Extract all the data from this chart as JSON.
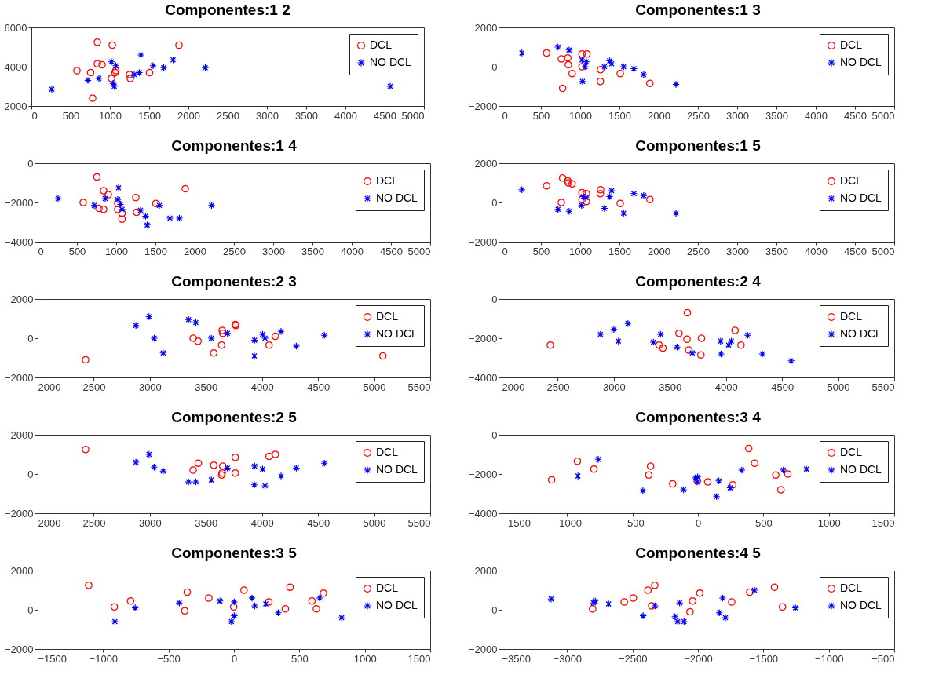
{
  "chart_data": [
    {
      "type": "scatter",
      "title": "Componentes:1  2",
      "xlim": [
        0,
        5000
      ],
      "xticks": [
        0,
        500,
        1000,
        1500,
        2000,
        2500,
        3000,
        3500,
        4000,
        4500,
        5000
      ],
      "ylim": [
        2000,
        6000
      ],
      "yticks": [
        2000,
        4000,
        6000
      ],
      "legend": "top right",
      "grid": false,
      "series": [
        {
          "name": "DCL",
          "color": "#ff0000",
          "marker": "circle",
          "x": [
            840,
            1030,
            1880,
            580,
            755,
            840,
            900,
            1075,
            1066,
            1020,
            1250,
            1260,
            1505,
            780
          ],
          "values": [
            5250,
            5100,
            5100,
            3800,
            3700,
            4150,
            4100,
            3800,
            3700,
            3400,
            3600,
            3400,
            3700,
            2400
          ]
        },
        {
          "name": "NO DCL",
          "color": "#0000ff",
          "marker": "cross",
          "x": [
            260,
            720,
            860,
            1020,
            1075,
            1040,
            1055,
            1310,
            1375,
            1395,
            1550,
            1685,
            1805,
            2215,
            4570
          ],
          "values": [
            2850,
            3300,
            3400,
            4250,
            4050,
            3150,
            3000,
            3600,
            3700,
            4600,
            4050,
            3950,
            4350,
            3950,
            3000
          ]
        }
      ]
    },
    {
      "type": "scatter",
      "title": "Componentes:1  3",
      "xlim": [
        0,
        5000
      ],
      "xticks": [
        0,
        500,
        1000,
        1500,
        2000,
        2500,
        3000,
        3500,
        4000,
        4500,
        5000
      ],
      "ylim": [
        -2000,
        2000
      ],
      "yticks": [
        -2000,
        0,
        2000
      ],
      "legend": "top right",
      "grid": false,
      "series": [
        {
          "name": "DCL",
          "color": "#ff0000",
          "marker": "circle",
          "x": [
            572,
            760,
            842,
            849,
            898,
            776,
            1023,
            1023,
            1086,
            1260,
            1257,
            1510,
            1888
          ],
          "values": [
            700,
            400,
            450,
            100,
            -350,
            -1100,
            650,
            0,
            650,
            -150,
            -750,
            -350,
            -850
          ]
        },
        {
          "name": "NO DCL",
          "color": "#0000ff",
          "marker": "cross",
          "x": [
            257,
            717,
            859,
            1023,
            1030,
            1062,
            1079,
            1309,
            1375,
            1401,
            1553,
            1684,
            1809,
            2221
          ],
          "values": [
            700,
            1000,
            850,
            350,
            -750,
            0,
            250,
            0,
            300,
            150,
            0,
            -100,
            -400,
            -900
          ]
        }
      ]
    },
    {
      "type": "scatter",
      "title": "Componentes:1  4",
      "xlim": [
        0,
        5000
      ],
      "xticks": [
        0,
        500,
        1000,
        1500,
        2000,
        2500,
        3000,
        3500,
        4000,
        4500,
        5000
      ],
      "ylim": [
        -4000,
        0
      ],
      "yticks": [
        -4000,
        -2000,
        0
      ],
      "legend": "top right",
      "grid": false,
      "series": [
        {
          "name": "DCL",
          "color": "#ff0000",
          "marker": "circle",
          "x": [
            755,
            840,
            900,
            580,
            780,
            840,
            1020,
            1020,
            1075,
            1075,
            1250,
            1260,
            1505,
            1880
          ],
          "values": [
            -700,
            -1400,
            -1600,
            -2000,
            -2300,
            -2350,
            -2350,
            -2050,
            -2550,
            -2850,
            -1750,
            -2500,
            -2050,
            -1300
          ]
        },
        {
          "name": "NO DCL",
          "color": "#0000ff",
          "marker": "cross",
          "x": [
            260,
            720,
            860,
            1030,
            1020,
            1055,
            1075,
            1310,
            1375,
            1395,
            1550,
            1685,
            1805,
            2215
          ],
          "values": [
            -1800,
            -2150,
            -1800,
            -1250,
            -1850,
            -2100,
            -2350,
            -2400,
            -2700,
            -3150,
            -2150,
            -2800,
            -2800,
            -2150
          ]
        }
      ]
    },
    {
      "type": "scatter",
      "title": "Componentes:1  5",
      "xlim": [
        0,
        5000
      ],
      "xticks": [
        0,
        500,
        1000,
        1500,
        2000,
        2500,
        3000,
        3500,
        4000,
        4500,
        5000
      ],
      "ylim": [
        -2000,
        2000
      ],
      "yticks": [
        -2000,
        0,
        2000
      ],
      "legend": "top right",
      "grid": false,
      "series": [
        {
          "name": "DCL",
          "color": "#ff0000",
          "marker": "circle",
          "x": [
            572,
            776,
            842,
            849,
            898,
            760,
            1023,
            1023,
            1079,
            1079,
            1260,
            1257,
            1510,
            1888
          ],
          "values": [
            850,
            1250,
            1100,
            1000,
            950,
            0,
            500,
            150,
            50,
            450,
            650,
            450,
            -50,
            150
          ]
        },
        {
          "name": "NO DCL",
          "color": "#0000ff",
          "marker": "cross",
          "x": [
            257,
            717,
            859,
            1017,
            1040,
            1073,
            1309,
            1375,
            1401,
            1553,
            1684,
            1809,
            2221
          ],
          "values": [
            650,
            -350,
            -450,
            -150,
            300,
            250,
            -300,
            300,
            600,
            -550,
            450,
            350,
            -550
          ]
        }
      ]
    },
    {
      "type": "scatter",
      "title": "Componentes:2  3",
      "xlim": [
        2000,
        5500
      ],
      "xticks": [
        2000,
        2500,
        3000,
        3500,
        4000,
        4500,
        5000,
        5500
      ],
      "ylim": [
        -2000,
        2000
      ],
      "yticks": [
        -2000,
        0,
        2000
      ],
      "legend": "top right",
      "grid": false,
      "series": [
        {
          "name": "DCL",
          "color": "#ff0000",
          "marker": "circle",
          "x": [
            2427,
            3386,
            3430,
            3570,
            3640,
            3645,
            3650,
            3762,
            3767,
            4063,
            4119,
            5078
          ],
          "values": [
            -1100,
            0,
            -150,
            -750,
            -350,
            400,
            250,
            700,
            650,
            -350,
            100,
            -900
          ]
        },
        {
          "name": "NO DCL",
          "color": "#0000ff",
          "marker": "cross",
          "x": [
            2876,
            2993,
            3039,
            3119,
            3345,
            3410,
            3548,
            3692,
            3934,
            3932,
            4005,
            4027,
            4170,
            4306,
            4556
          ],
          "values": [
            650,
            1100,
            0,
            -750,
            950,
            800,
            0,
            250,
            -100,
            -900,
            200,
            0,
            350,
            -400,
            150
          ]
        }
      ]
    },
    {
      "type": "scatter",
      "title": "Componentes:2  4",
      "xlim": [
        2000,
        5500
      ],
      "xticks": [
        2000,
        2500,
        3000,
        3500,
        4000,
        4500,
        5000,
        5500
      ],
      "ylim": [
        -4000,
        0
      ],
      "yticks": [
        -4000,
        -2000,
        0
      ],
      "legend": "top right",
      "grid": false,
      "series": [
        {
          "name": "DCL",
          "color": "#ff0000",
          "marker": "circle",
          "x": [
            2434,
            3656,
            3581,
            3652,
            3782,
            3404,
            3438,
            3668,
            3776,
            4081,
            4134
          ],
          "values": [
            -2350,
            -700,
            -1750,
            -2050,
            -2000,
            -2350,
            -2500,
            -2600,
            -2850,
            -1600,
            -2350
          ]
        },
        {
          "name": "NO DCL",
          "color": "#0000ff",
          "marker": "cross",
          "x": [
            2881,
            3000,
            3041,
            3126,
            3353,
            3417,
            3564,
            3700,
            3952,
            3956,
            4023,
            4048,
            4193,
            4324,
            4581
          ],
          "values": [
            -1800,
            -1550,
            -2150,
            -1250,
            -2200,
            -1800,
            -2450,
            -2750,
            -2150,
            -2800,
            -2350,
            -2150,
            -1850,
            -2800,
            -3150
          ]
        }
      ]
    },
    {
      "type": "scatter",
      "title": "Componentes:2  5",
      "xlim": [
        2000,
        5500
      ],
      "xticks": [
        2000,
        2500,
        3000,
        3500,
        4000,
        4500,
        5000,
        5500
      ],
      "ylim": [
        -2000,
        2000
      ],
      "yticks": [
        -2000,
        0,
        2000
      ],
      "legend": "top right",
      "grid": false,
      "series": [
        {
          "name": "DCL",
          "color": "#ff0000",
          "marker": "circle",
          "x": [
            2427,
            3386,
            3432,
            3570,
            3640,
            3645,
            3650,
            3762,
            3762,
            4063,
            4119
          ],
          "values": [
            1250,
            200,
            550,
            450,
            -50,
            50,
            400,
            850,
            50,
            900,
            1000
          ]
        },
        {
          "name": "NO DCL",
          "color": "#0000ff",
          "marker": "cross",
          "x": [
            2876,
            2993,
            3039,
            3119,
            3345,
            3410,
            3548,
            3692,
            3934,
            3932,
            4005,
            4027,
            4170,
            4306,
            4556
          ],
          "values": [
            600,
            1000,
            350,
            150,
            -400,
            -400,
            -300,
            300,
            400,
            -550,
            250,
            -600,
            -100,
            300,
            550
          ]
        }
      ]
    },
    {
      "type": "scatter",
      "title": "Componentes:3  4",
      "xlim": [
        -1500,
        1500
      ],
      "xticks": [
        -1500,
        -1000,
        -500,
        0,
        500,
        1000,
        1500
      ],
      "ylim": [
        -4000,
        0
      ],
      "yticks": [
        -4000,
        -2000,
        0
      ],
      "legend": "top right",
      "grid": false,
      "series": [
        {
          "name": "DCL",
          "color": "#ff0000",
          "marker": "circle",
          "x": [
            -1118,
            -921,
            -795,
            -362,
            -376,
            -193,
            -4,
            75,
            266,
            388,
            433,
            595,
            634,
            687
          ],
          "values": [
            -2300,
            -1350,
            -1750,
            -1600,
            -2050,
            -2500,
            -2350,
            -2400,
            -2550,
            -700,
            -1450,
            -2050,
            -2800,
            -2000
          ]
        },
        {
          "name": "NO DCL",
          "color": "#0000ff",
          "marker": "cross",
          "x": [
            -917,
            -762,
            -421,
            -110,
            -20,
            -2,
            -6,
            160,
            142,
            246,
            335,
            652,
            829
          ],
          "values": [
            -2100,
            -1250,
            -2850,
            -2800,
            -2200,
            -2150,
            -2400,
            -2350,
            -3150,
            -2700,
            -1800,
            -1800,
            -1750
          ]
        }
      ]
    },
    {
      "type": "scatter",
      "title": "Componentes:3  5",
      "xlim": [
        -1500,
        1500
      ],
      "xticks": [
        -1500,
        -1000,
        -500,
        0,
        500,
        1000,
        1500
      ],
      "ylim": [
        -2000,
        2000
      ],
      "yticks": [
        -2000,
        0,
        2000
      ],
      "legend": "top right",
      "grid": false,
      "series": [
        {
          "name": "DCL",
          "color": "#ff0000",
          "marker": "circle",
          "x": [
            -1110,
            -914,
            -790,
            -357,
            -376,
            -192,
            -2,
            77,
            266,
            393,
            429,
            596,
            630,
            684
          ],
          "values": [
            1250,
            150,
            450,
            900,
            -50,
            600,
            150,
            1000,
            400,
            50,
            1150,
            450,
            50,
            850
          ]
        },
        {
          "name": "NO DCL",
          "color": "#0000ff",
          "marker": "cross",
          "x": [
            -910,
            -755,
            -418,
            -107,
            2,
            2,
            -19,
            138,
            159,
            243,
            339,
            655,
            823
          ],
          "values": [
            -600,
            100,
            350,
            450,
            400,
            -300,
            -600,
            600,
            200,
            300,
            -150,
            600,
            -400
          ]
        }
      ]
    },
    {
      "type": "scatter",
      "title": "Componentes:4  5",
      "xlim": [
        -3500,
        -500
      ],
      "xticks": [
        -3500,
        -3000,
        -2500,
        -2000,
        -1500,
        -1000,
        -500
      ],
      "ylim": [
        -2000,
        2000
      ],
      "yticks": [
        -2000,
        0,
        2000
      ],
      "legend": "top right",
      "grid": false,
      "series": [
        {
          "name": "DCL",
          "color": "#ff0000",
          "marker": "circle",
          "x": [
            -2805,
            -2563,
            -2494,
            -2382,
            -2330,
            -2354,
            -2061,
            -2041,
            -1986,
            -1742,
            -1604,
            -1415,
            -1354
          ],
          "values": [
            50,
            400,
            600,
            1000,
            1250,
            200,
            -100,
            450,
            850,
            400,
            900,
            1150,
            150
          ]
        },
        {
          "name": "NO DCL",
          "color": "#0000ff",
          "marker": "cross",
          "x": [
            -3122,
            -2798,
            -2785,
            -2683,
            -2419,
            -2328,
            -2175,
            -2155,
            -2106,
            -2140,
            -1837,
            -1812,
            -1790,
            -1568,
            -1255
          ],
          "values": [
            550,
            350,
            450,
            300,
            -300,
            200,
            -350,
            -600,
            -600,
            350,
            -150,
            600,
            -400,
            1000,
            100
          ]
        }
      ]
    }
  ]
}
